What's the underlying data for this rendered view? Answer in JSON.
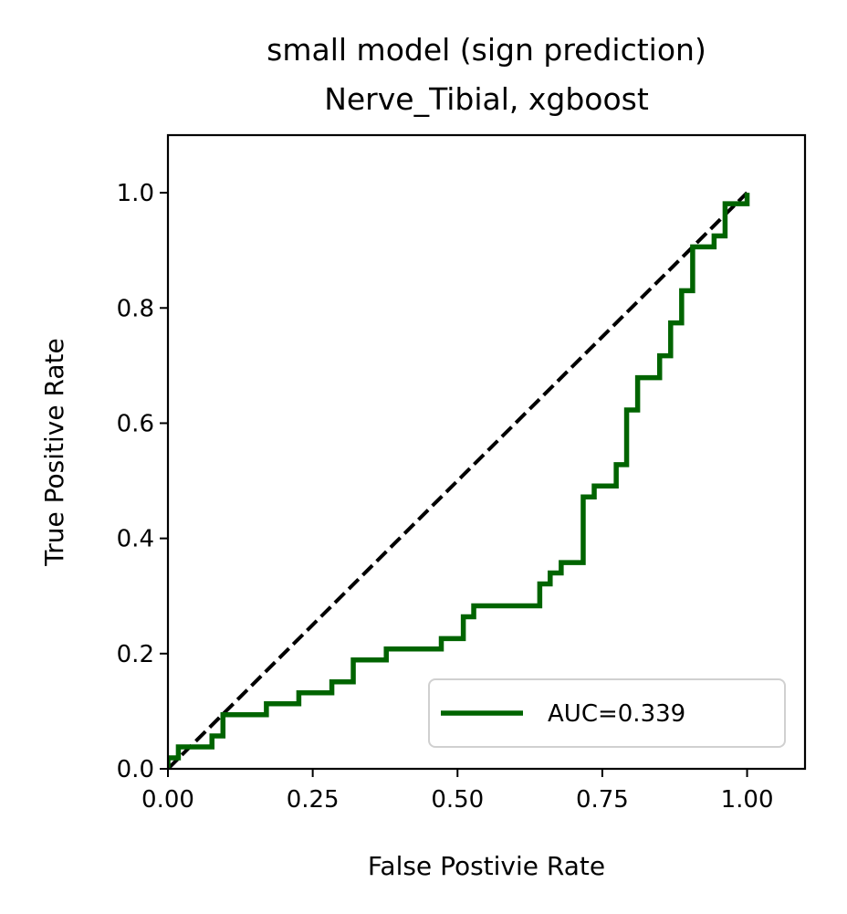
{
  "chart_data": {
    "type": "line",
    "title_line1": "small model (sign prediction)",
    "title_line2": "Nerve_Tibial, xgboost",
    "xlabel": "False Postivie Rate",
    "ylabel": "True Positive Rate",
    "xlim": [
      0.0,
      1.1
    ],
    "ylim": [
      0.0,
      1.1
    ],
    "xticks": [
      0.0,
      0.25,
      0.5,
      0.75,
      1.0
    ],
    "xtick_labels": [
      "0.00",
      "0.25",
      "0.50",
      "0.75",
      "1.00"
    ],
    "yticks": [
      0.0,
      0.2,
      0.4,
      0.6,
      0.8,
      1.0
    ],
    "ytick_labels": [
      "0.0",
      "0.2",
      "0.4",
      "0.6",
      "0.8",
      "1.0"
    ],
    "grid": false,
    "legend_position": "lower-right",
    "series": [
      {
        "name": "AUC=0.339",
        "color": "#006400",
        "style": "solid",
        "x": [
          0.0,
          0.0,
          0.018,
          0.018,
          0.076,
          0.076,
          0.095,
          0.095,
          0.17,
          0.17,
          0.226,
          0.226,
          0.283,
          0.283,
          0.32,
          0.32,
          0.377,
          0.377,
          0.472,
          0.472,
          0.51,
          0.51,
          0.528,
          0.528,
          0.642,
          0.642,
          0.66,
          0.66,
          0.679,
          0.679,
          0.717,
          0.717,
          0.736,
          0.736,
          0.774,
          0.774,
          0.792,
          0.792,
          0.811,
          0.811,
          0.849,
          0.849,
          0.868,
          0.868,
          0.887,
          0.887,
          0.906,
          0.906,
          0.943,
          0.943,
          0.962,
          0.962,
          1.0,
          1.0
        ],
        "y": [
          0.0,
          0.019,
          0.019,
          0.038,
          0.038,
          0.057,
          0.057,
          0.094,
          0.094,
          0.113,
          0.113,
          0.132,
          0.132,
          0.151,
          0.151,
          0.189,
          0.189,
          0.208,
          0.208,
          0.226,
          0.226,
          0.264,
          0.264,
          0.283,
          0.283,
          0.321,
          0.321,
          0.34,
          0.34,
          0.358,
          0.358,
          0.472,
          0.472,
          0.491,
          0.491,
          0.528,
          0.528,
          0.623,
          0.623,
          0.679,
          0.679,
          0.717,
          0.717,
          0.774,
          0.774,
          0.83,
          0.83,
          0.906,
          0.906,
          0.925,
          0.925,
          0.981,
          0.981,
          1.0
        ]
      },
      {
        "name": "",
        "color": "#000000",
        "style": "dashed",
        "x": [
          0.0,
          1.0
        ],
        "y": [
          0.0,
          1.0
        ]
      }
    ]
  }
}
